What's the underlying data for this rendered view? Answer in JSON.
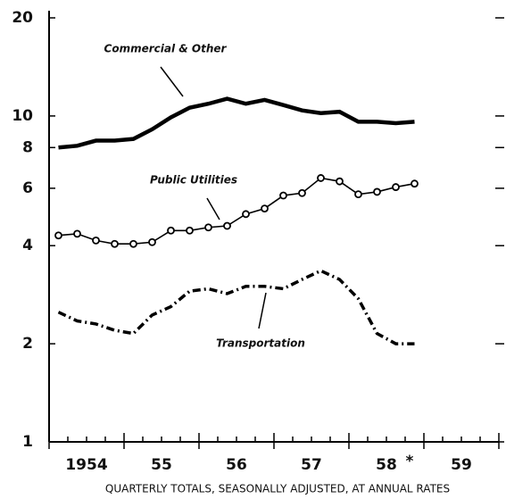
{
  "chart_data": {
    "type": "line",
    "log_y": true,
    "x_label": "QUARTERLY TOTALS, SEASONALLY ADJUSTED, AT ANNUAL RATES",
    "footnote_mark": "*",
    "x": [
      1954.125,
      1954.375,
      1954.625,
      1954.875,
      1955.125,
      1955.375,
      1955.625,
      1955.875,
      1956.125,
      1956.375,
      1956.625,
      1956.875,
      1957.125,
      1957.375,
      1957.625,
      1957.875,
      1958.125,
      1958.375,
      1958.625,
      1958.875
    ],
    "xlim": [
      1954,
      1960
    ],
    "xticks": [
      {
        "value": 1954.5,
        "label": "1954"
      },
      {
        "value": 1955.5,
        "label": "55"
      },
      {
        "value": 1956.5,
        "label": "56"
      },
      {
        "value": 1957.5,
        "label": "57"
      },
      {
        "value": 1958.5,
        "label": "58"
      },
      {
        "value": 1959.5,
        "label": "59"
      }
    ],
    "ylim": [
      1,
      20
    ],
    "yticks": [
      1,
      2,
      4,
      6,
      8,
      10,
      20
    ],
    "series": [
      {
        "name": "Commercial & Other",
        "color": "#000000",
        "style": "solid",
        "values": [
          8.0,
          8.1,
          8.4,
          8.4,
          8.5,
          9.1,
          9.9,
          10.6,
          10.9,
          11.3,
          10.9,
          11.2,
          10.8,
          10.4,
          10.2,
          10.3,
          9.6,
          9.6,
          9.5,
          9.6
        ]
      },
      {
        "name": "Public Utilities",
        "color": "#000000",
        "style": "circles",
        "values": [
          4.3,
          4.35,
          4.15,
          4.05,
          4.05,
          4.1,
          4.45,
          4.45,
          4.55,
          4.6,
          5.0,
          5.2,
          5.7,
          5.8,
          6.45,
          6.3,
          5.75,
          5.85,
          6.05,
          6.2
        ]
      },
      {
        "name": "Transportation",
        "color": "#000000",
        "style": "dashdot",
        "values": [
          2.5,
          2.35,
          2.3,
          2.2,
          2.15,
          2.45,
          2.6,
          2.9,
          2.95,
          2.85,
          3.0,
          3.0,
          2.95,
          3.15,
          3.35,
          3.15,
          2.75,
          2.15,
          2.0,
          2.0
        ]
      }
    ]
  }
}
